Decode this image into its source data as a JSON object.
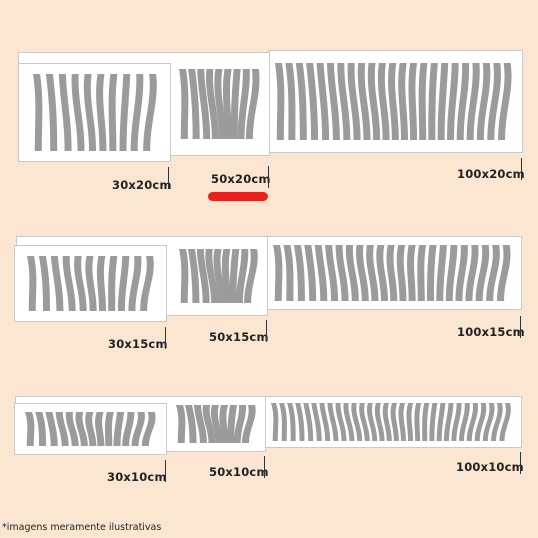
{
  "rows": [
    {
      "sizes": [
        "30x20cm",
        "50x20cm",
        "100x20cm"
      ]
    },
    {
      "sizes": [
        "30x15cm",
        "50x15cm",
        "100x15cm"
      ]
    },
    {
      "sizes": [
        "30x10cm",
        "50x10cm",
        "100x10cm"
      ]
    }
  ],
  "selected_size": "50x20cm",
  "colors": {
    "background": "#fbe6d2",
    "stripes": "#9b9b9b",
    "panel": "#ffffff",
    "selection": "#e8201e"
  },
  "footnote": "*imagens meramente ilustrativas"
}
